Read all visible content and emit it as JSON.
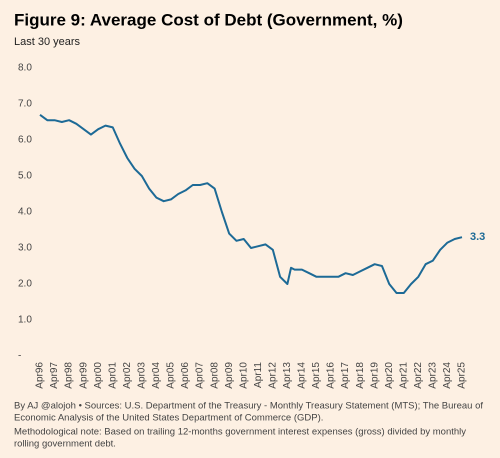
{
  "chart_data": {
    "type": "line",
    "title": "Figure 9: Average Cost of Debt (Government, %)",
    "subtitle": "Last 30 years",
    "x": [
      "1996-04",
      "1996-10",
      "1997-04",
      "1997-10",
      "1998-04",
      "1998-10",
      "1999-04",
      "1999-10",
      "2000-04",
      "2000-10",
      "2001-04",
      "2001-10",
      "2002-04",
      "2002-10",
      "2003-04",
      "2003-10",
      "2004-04",
      "2004-10",
      "2005-04",
      "2005-10",
      "2006-04",
      "2006-10",
      "2007-04",
      "2007-10",
      "2008-04",
      "2008-10",
      "2009-04",
      "2009-10",
      "2010-04",
      "2010-10",
      "2011-04",
      "2011-10",
      "2012-04",
      "2012-10",
      "2013-04",
      "2013-07",
      "2013-10",
      "2014-04",
      "2014-10",
      "2015-04",
      "2015-10",
      "2016-04",
      "2016-10",
      "2017-04",
      "2017-10",
      "2018-04",
      "2018-10",
      "2019-04",
      "2019-10",
      "2020-04",
      "2020-10",
      "2021-04",
      "2021-10",
      "2022-04",
      "2022-10",
      "2023-04",
      "2023-10",
      "2024-04",
      "2024-10",
      "2025-04"
    ],
    "series": [
      {
        "name": "Average Cost of Debt",
        "color": "#1d6a96",
        "values": [
          6.7,
          6.55,
          6.55,
          6.5,
          6.55,
          6.45,
          6.3,
          6.15,
          6.3,
          6.4,
          6.35,
          5.9,
          5.5,
          5.2,
          5.0,
          4.65,
          4.4,
          4.3,
          4.35,
          4.5,
          4.6,
          4.75,
          4.75,
          4.8,
          4.65,
          4.0,
          3.4,
          3.2,
          3.25,
          3.0,
          3.05,
          3.1,
          2.95,
          2.2,
          2.0,
          2.45,
          2.4,
          2.4,
          2.3,
          2.2,
          2.2,
          2.2,
          2.2,
          2.3,
          2.25,
          2.35,
          2.45,
          2.55,
          2.5,
          2.0,
          1.75,
          1.75,
          2.0,
          2.2,
          2.55,
          2.65,
          2.95,
          3.15,
          3.25,
          3.3
        ]
      }
    ],
    "xlim": [
      "1996-04",
      "2025-04"
    ],
    "xticks": [
      {
        "value": "1996-04",
        "label": "Apr96"
      },
      {
        "value": "1997-04",
        "label": "Apr97"
      },
      {
        "value": "1998-04",
        "label": "Apr98"
      },
      {
        "value": "1999-04",
        "label": "Apr99"
      },
      {
        "value": "2000-04",
        "label": "Apr00"
      },
      {
        "value": "2001-04",
        "label": "Apr01"
      },
      {
        "value": "2002-04",
        "label": "Apr02"
      },
      {
        "value": "2003-04",
        "label": "Apr03"
      },
      {
        "value": "2004-04",
        "label": "Apr04"
      },
      {
        "value": "2005-04",
        "label": "Apr05"
      },
      {
        "value": "2006-04",
        "label": "Apr06"
      },
      {
        "value": "2007-04",
        "label": "Apr07"
      },
      {
        "value": "2008-04",
        "label": "Apr08"
      },
      {
        "value": "2009-04",
        "label": "Apr09"
      },
      {
        "value": "2010-04",
        "label": "Apr10"
      },
      {
        "value": "2011-04",
        "label": "Apr11"
      },
      {
        "value": "2012-04",
        "label": "Apr12"
      },
      {
        "value": "2013-04",
        "label": "Apr13"
      },
      {
        "value": "2014-04",
        "label": "Apr14"
      },
      {
        "value": "2015-04",
        "label": "Apr15"
      },
      {
        "value": "2016-04",
        "label": "Apr16"
      },
      {
        "value": "2017-04",
        "label": "Apr17"
      },
      {
        "value": "2018-04",
        "label": "Apr18"
      },
      {
        "value": "2019-04",
        "label": "Apr19"
      },
      {
        "value": "2020-04",
        "label": "Apr20"
      },
      {
        "value": "2021-04",
        "label": "Apr21"
      },
      {
        "value": "2022-04",
        "label": "Apr22"
      },
      {
        "value": "2023-04",
        "label": "Apr23"
      },
      {
        "value": "2024-04",
        "label": "Apr24"
      },
      {
        "value": "2025-04",
        "label": "Apr25"
      }
    ],
    "ylim": [
      0,
      8
    ],
    "yticks": [
      {
        "value": 0,
        "label": "-"
      },
      {
        "value": 1,
        "label": "1.0"
      },
      {
        "value": 2,
        "label": "2.0"
      },
      {
        "value": 3,
        "label": "3.0"
      },
      {
        "value": 4,
        "label": "4.0"
      },
      {
        "value": 5,
        "label": "5.0"
      },
      {
        "value": 6,
        "label": "6.0"
      },
      {
        "value": 7,
        "label": "7.0"
      },
      {
        "value": 8,
        "label": "8.0"
      }
    ],
    "grid": false,
    "source_lines": [
      "By AJ @alojoh • Sources: U.S. Department of the Treasury - Monthly Treasury Statement (MTS); The Bureau of",
      "Economic Analysis of the United States Department of Commerce (GDP).",
      "Methodological note: Based on trailing 12-months government interest expenses (gross) divided by monthly",
      "rolling government debt."
    ]
  }
}
